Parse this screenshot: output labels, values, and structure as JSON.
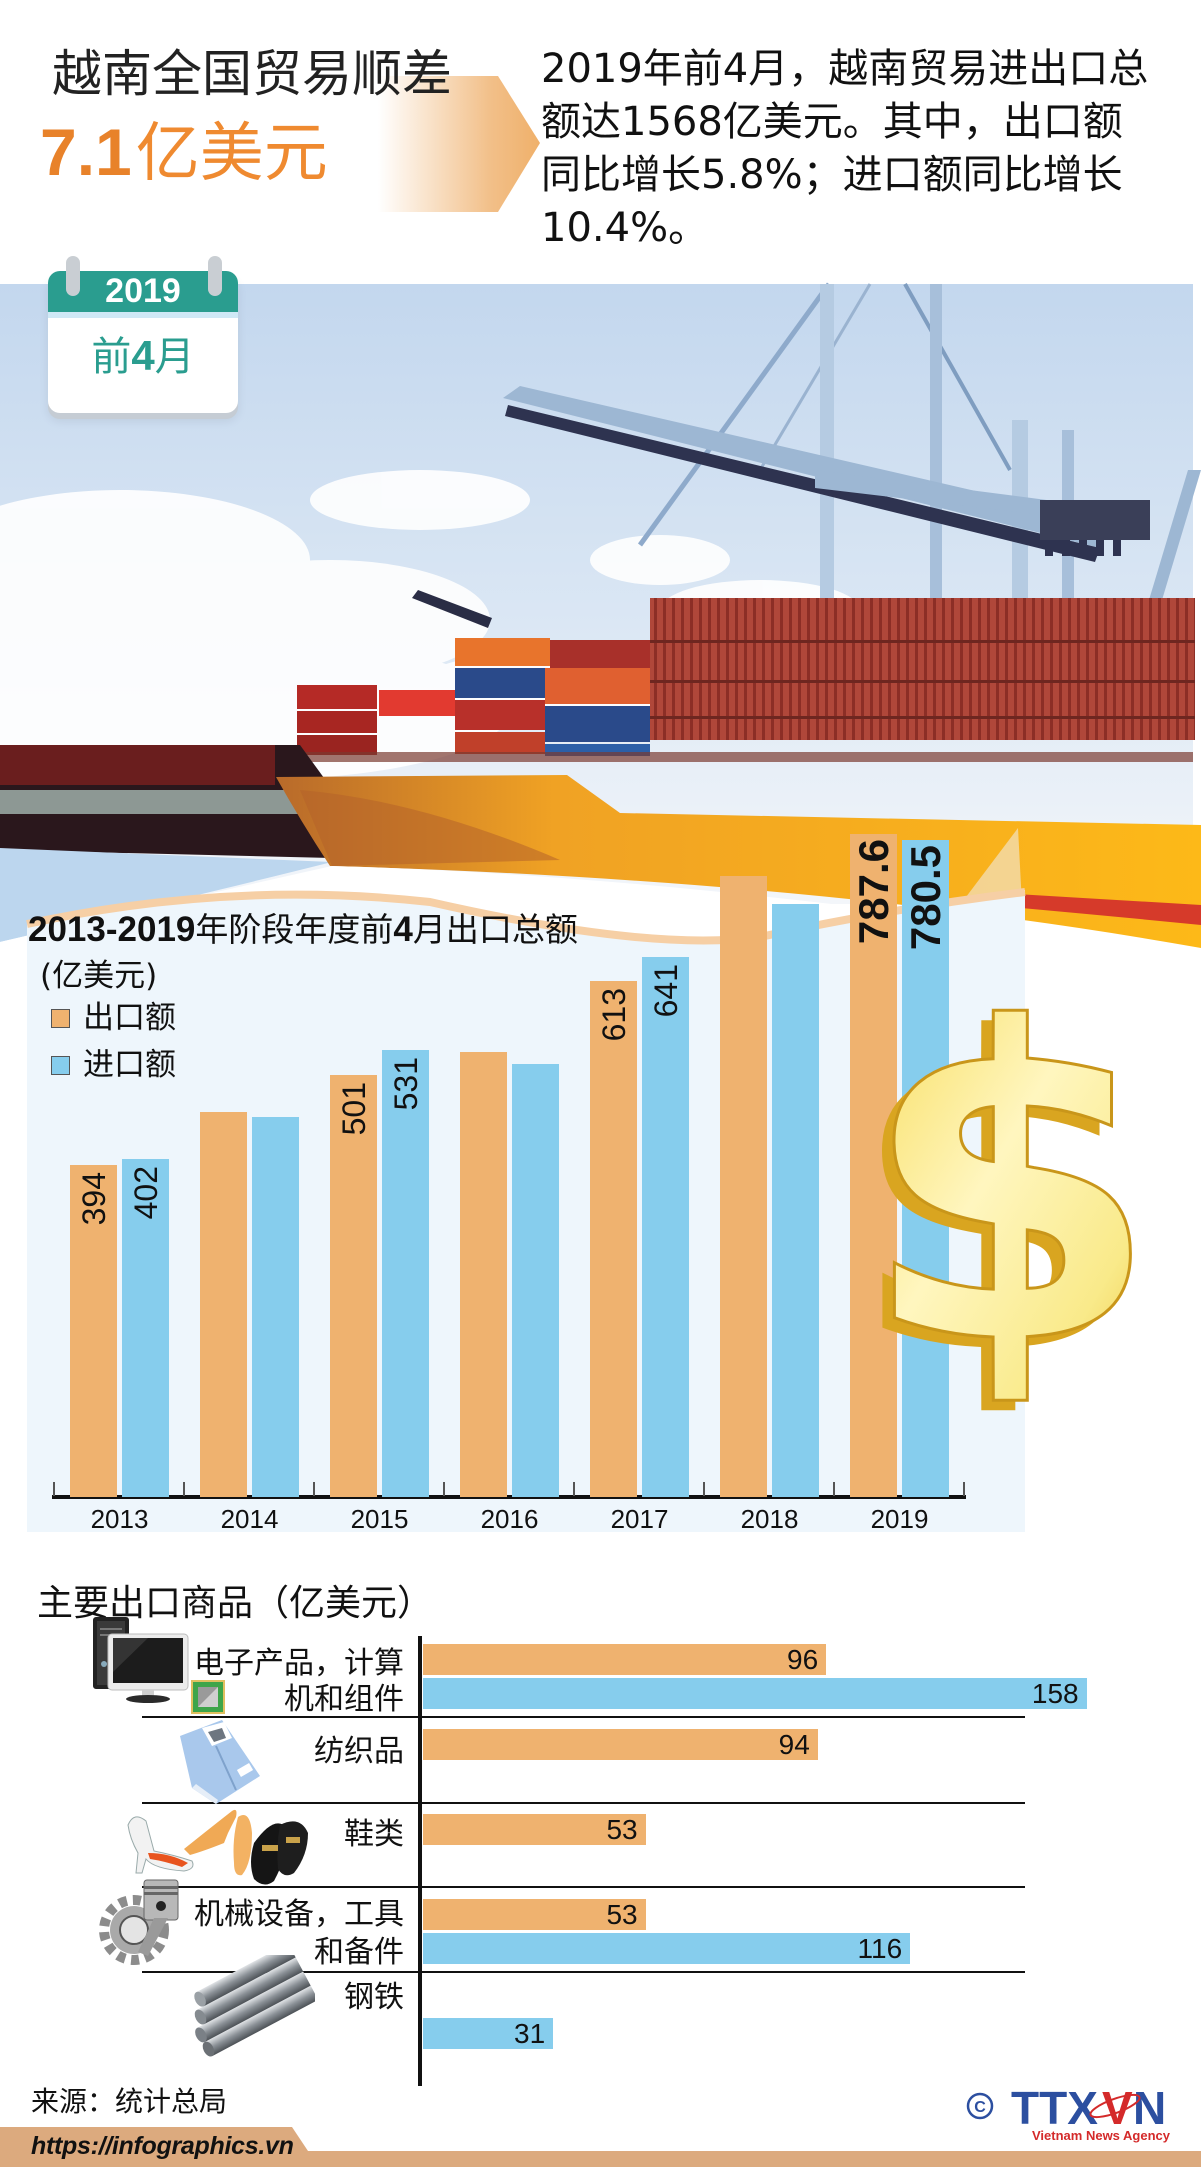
{
  "header": {
    "title": "越南全国贸易顺差",
    "amount_number": "7.1",
    "amount_unit": "亿美元",
    "summary_lines": [
      "2019年前4月，越南贸易进出口总",
      "额达1568亿美元。其中，出口额",
      "同比增长5.8%；进口额同比增长",
      "10.4%。"
    ]
  },
  "calendar": {
    "year": "2019",
    "label_prefix": "前",
    "label_number": "4",
    "label_suffix": "月"
  },
  "chart1": {
    "title_parts": [
      {
        "text": "2013-2019",
        "bold": true
      },
      {
        "text": "年阶段年度前",
        "bold": false
      },
      {
        "text": "4",
        "bold": true
      },
      {
        "text": "月出口总额",
        "bold": false
      }
    ],
    "unit": "(亿美元)",
    "legend": [
      {
        "label": "出口额",
        "color": "#efb26f"
      },
      {
        "label": "进口额",
        "color": "#86cded"
      }
    ]
  },
  "chart2": {
    "title": "主要出口商品（亿美元）",
    "rows": [
      {
        "lines": [
          "电子产品，计算",
          "机和组件"
        ],
        "icon": "computer-icon"
      },
      {
        "lines": [
          "纺织品"
        ],
        "icon": "shirt-icon"
      },
      {
        "lines": [
          "鞋类"
        ],
        "icon": "shoes-icon"
      },
      {
        "lines": [
          "机械设备，工具",
          "和备件"
        ],
        "icon": "gear-piston-icon"
      },
      {
        "lines": [
          "钢铁"
        ],
        "icon": "steel-bars-icon"
      }
    ]
  },
  "source": {
    "text": "来源：统计总局"
  },
  "footer": {
    "url": "https://infographics.vn",
    "copyright": "©",
    "logo_left": "TTX",
    "logo_v": "V",
    "logo_right": "N",
    "logo_sub": "Vietnam News Agency"
  },
  "colors": {
    "headline_orange": "#e8822a",
    "calendar_teal": "#2a9d8f",
    "export_orange": "#efb26f",
    "import_blue": "#86cded",
    "chart_panel": "#eef6fc",
    "footer_tan": "#dcaa7e",
    "logo_blue": "#2c4fa0",
    "logo_red": "#d42a2a"
  },
  "chart_data": [
    {
      "type": "bar",
      "title": "2013-2019年阶段年度前4月出口总额",
      "subtitle": "(亿美元)",
      "categories": [
        "2013",
        "2014",
        "2015",
        "2016",
        "2017",
        "2018",
        "2019"
      ],
      "series": [
        {
          "id": "export",
          "name": "出口额",
          "color": "#efb26f",
          "values": [
            394,
            457,
            501,
            529,
            613,
            738,
            787.6
          ],
          "labels": [
            "394",
            "",
            "501",
            "",
            "613",
            "",
            "787.6"
          ]
        },
        {
          "id": "import",
          "name": "进口额",
          "color": "#86cded",
          "values": [
            402,
            451,
            531,
            514,
            641,
            704,
            780.5
          ],
          "labels": [
            "402",
            "",
            "531",
            "",
            "641",
            "",
            "780.5"
          ]
        }
      ],
      "xlabel": "",
      "ylabel": "亿美元",
      "ylim": [
        0,
        800
      ],
      "grid": false,
      "legend_position": "top-left"
    },
    {
      "type": "bar",
      "orientation": "horizontal",
      "title": "主要出口商品（亿美元）",
      "categories": [
        "电子产品，计算机和组件",
        "纺织品",
        "鞋类",
        "机械设备，工具和备件",
        "钢铁"
      ],
      "series": [
        {
          "id": "orange",
          "name": "出口额",
          "color": "#efb26f",
          "values": [
            96,
            94,
            53,
            53,
            null
          ]
        },
        {
          "id": "blue",
          "name": "进口额",
          "color": "#86cded",
          "values": [
            158,
            null,
            null,
            116,
            31
          ]
        }
      ],
      "xlim": [
        0,
        170
      ],
      "grid": false
    }
  ]
}
